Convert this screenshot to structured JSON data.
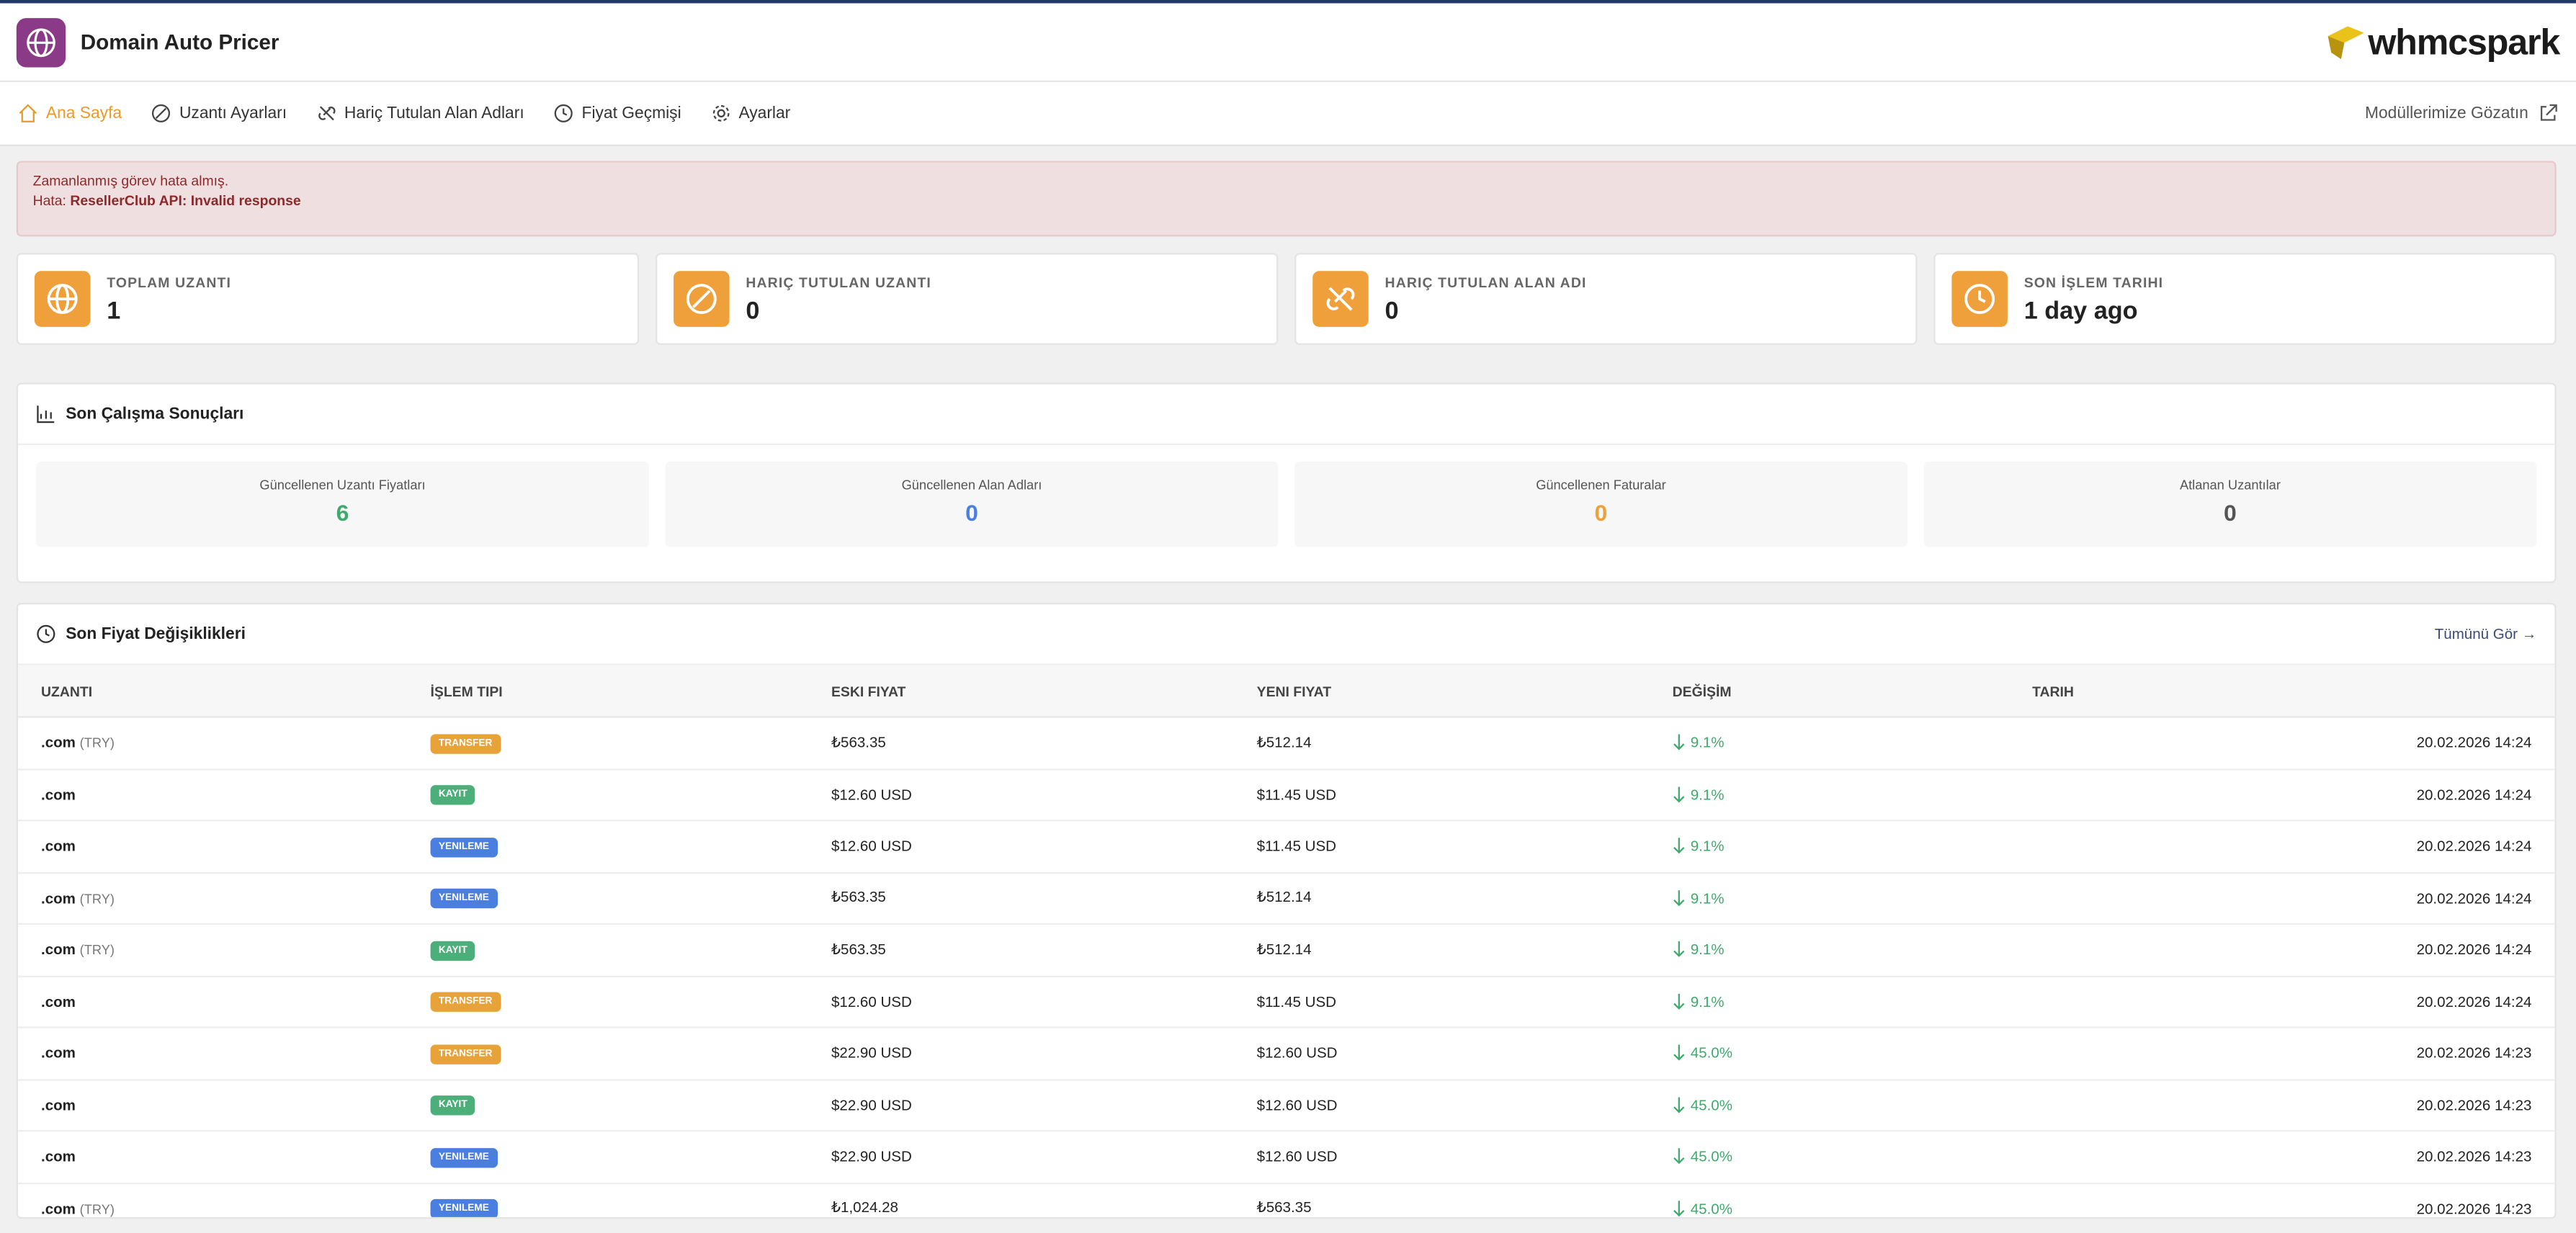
{
  "header": {
    "title": "Domain Auto Pricer",
    "brand": "whmcspark"
  },
  "nav": {
    "items": [
      "Ana Sayfa",
      "Uzantı Ayarları",
      "Hariç Tutulan Alan Adları",
      "Fiyat Geçmişi",
      "Ayarlar"
    ],
    "right": "Modüllerimize Gözatın"
  },
  "alert": {
    "line1": "Zamanlanmış görev hata almış.",
    "prefix": "Hata:",
    "error": "ResellerClub API: Invalid response"
  },
  "stats": [
    {
      "label": "TOPLAM UZANTI",
      "value": "1"
    },
    {
      "label": "HARIÇ TUTULAN UZANTI",
      "value": "0"
    },
    {
      "label": "HARIÇ TUTULAN ALAN ADI",
      "value": "0"
    },
    {
      "label": "SON İŞLEM TARIHI",
      "value": "1 day ago"
    }
  ],
  "results": {
    "title": "Son Çalışma Sonuçları",
    "items": [
      {
        "label": "Güncellenen Uzantı Fiyatları",
        "value": "6",
        "color": "#3faa6b"
      },
      {
        "label": "Güncellenen Alan Adları",
        "value": "0",
        "color": "#4a7fe0"
      },
      {
        "label": "Güncellenen Faturalar",
        "value": "0",
        "color": "#f0a03a"
      },
      {
        "label": "Atlanan Uzantılar",
        "value": "0",
        "color": "#555"
      }
    ]
  },
  "changes": {
    "title": "Son Fiyat Değişiklikleri",
    "link": "Tümünü Gör",
    "columns": [
      "UZANTI",
      "İŞLEM TIPI",
      "ESKI FIYAT",
      "YENI FIYAT",
      "DEĞİŞİM",
      "TARIH"
    ],
    "rows": [
      {
        "ext": ".com",
        "currency": "(TRY)",
        "type": "TRANSFER",
        "old": "₺563.35",
        "new": "₺512.14",
        "change": "9.1%",
        "date": "20.02.2026 14:24"
      },
      {
        "ext": ".com",
        "type": "KAYIT",
        "old": "$12.60 USD",
        "new": "$11.45 USD",
        "change": "9.1%",
        "date": "20.02.2026 14:24"
      },
      {
        "ext": ".com",
        "type": "YENILEME",
        "old": "$12.60 USD",
        "new": "$11.45 USD",
        "change": "9.1%",
        "date": "20.02.2026 14:24"
      },
      {
        "ext": ".com",
        "currency": "(TRY)",
        "type": "YENILEME",
        "old": "₺563.35",
        "new": "₺512.14",
        "change": "9.1%",
        "date": "20.02.2026 14:24"
      },
      {
        "ext": ".com",
        "currency": "(TRY)",
        "type": "KAYIT",
        "old": "₺563.35",
        "new": "₺512.14",
        "change": "9.1%",
        "date": "20.02.2026 14:24"
      },
      {
        "ext": ".com",
        "type": "TRANSFER",
        "old": "$12.60 USD",
        "new": "$11.45 USD",
        "change": "9.1%",
        "date": "20.02.2026 14:24"
      },
      {
        "ext": ".com",
        "type": "TRANSFER",
        "old": "$22.90 USD",
        "new": "$12.60 USD",
        "change": "45.0%",
        "date": "20.02.2026 14:23"
      },
      {
        "ext": ".com",
        "type": "KAYIT",
        "old": "$22.90 USD",
        "new": "$12.60 USD",
        "change": "45.0%",
        "date": "20.02.2026 14:23"
      },
      {
        "ext": ".com",
        "type": "YENILEME",
        "old": "$22.90 USD",
        "new": "$12.60 USD",
        "change": "45.0%",
        "date": "20.02.2026 14:23"
      },
      {
        "ext": ".com",
        "currency": "(TRY)",
        "type": "YENILEME",
        "old": "₺1,024.28",
        "new": "₺563.35",
        "change": "45.0%",
        "date": "20.02.2026 14:23"
      }
    ]
  }
}
